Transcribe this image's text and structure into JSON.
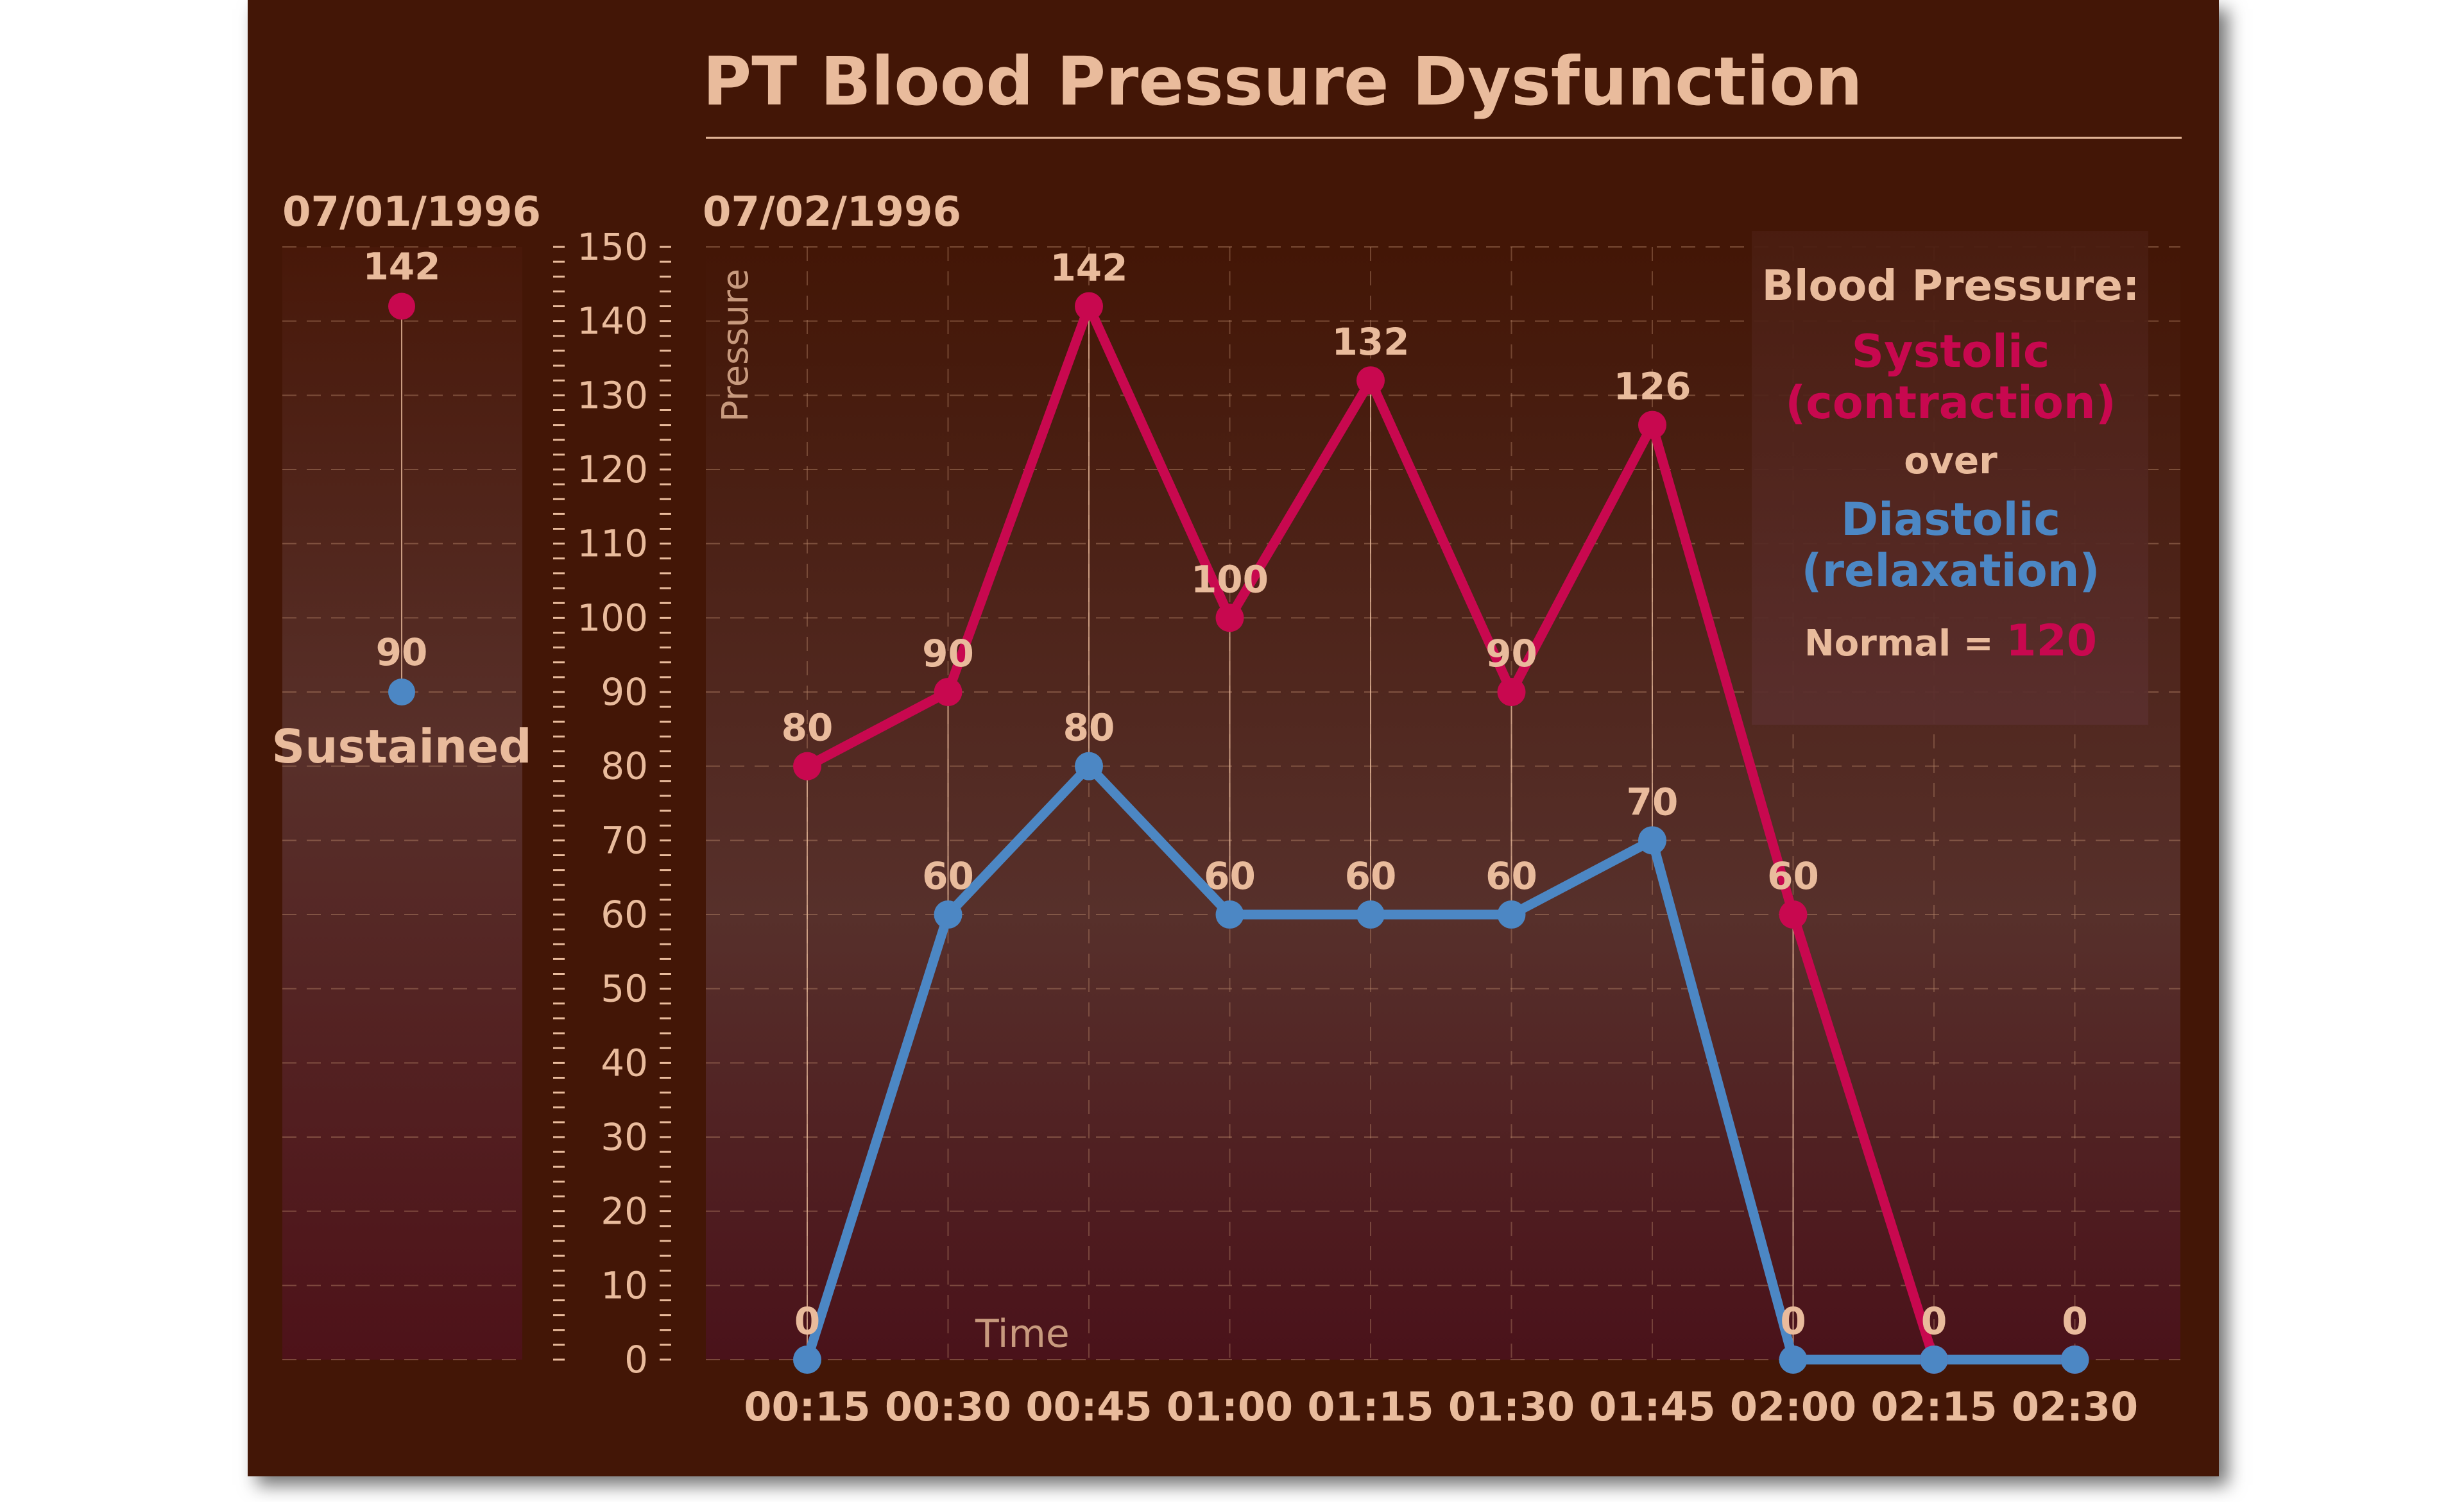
{
  "colors": {
    "background": "#431606",
    "systolic": "#c8084f",
    "diastolic": "#4c87c4",
    "text": "#e9bb9c",
    "grid": "#b8876a"
  },
  "chart_data": {
    "type": "line",
    "title": "PT Blood Pressure Dysfunction",
    "ylabel": "Pressure",
    "xlabel": "Time",
    "ylim": [
      0,
      150
    ],
    "yticks": [
      0,
      10,
      20,
      30,
      40,
      50,
      60,
      70,
      80,
      90,
      100,
      110,
      120,
      130,
      140,
      150
    ],
    "grid": true,
    "prior": {
      "date": "07/01/1996",
      "systolic": 142,
      "diastolic": 90,
      "label": "Sustained"
    },
    "date": "07/02/1996",
    "categories": [
      "00:15",
      "00:30",
      "00:45",
      "01:00",
      "01:15",
      "01:30",
      "01:45",
      "02:00",
      "02:15",
      "02:30"
    ],
    "series": [
      {
        "key": "systolic",
        "values": [
          80,
          90,
          142,
          100,
          132,
          90,
          126,
          60,
          0,
          0
        ]
      },
      {
        "key": "diastolic",
        "values": [
          0,
          60,
          80,
          60,
          60,
          60,
          70,
          0,
          0,
          0
        ]
      }
    ],
    "legend": {
      "placement": "top-right",
      "title": "Blood Pressure:",
      "systolic_line1": "Systolic",
      "systolic_line2": "(contraction)",
      "over": "over",
      "diastolic_line1": "Diastolic",
      "diastolic_line2": "(relaxation)",
      "normal_label": "Normal = ",
      "normal_value": "120"
    }
  }
}
